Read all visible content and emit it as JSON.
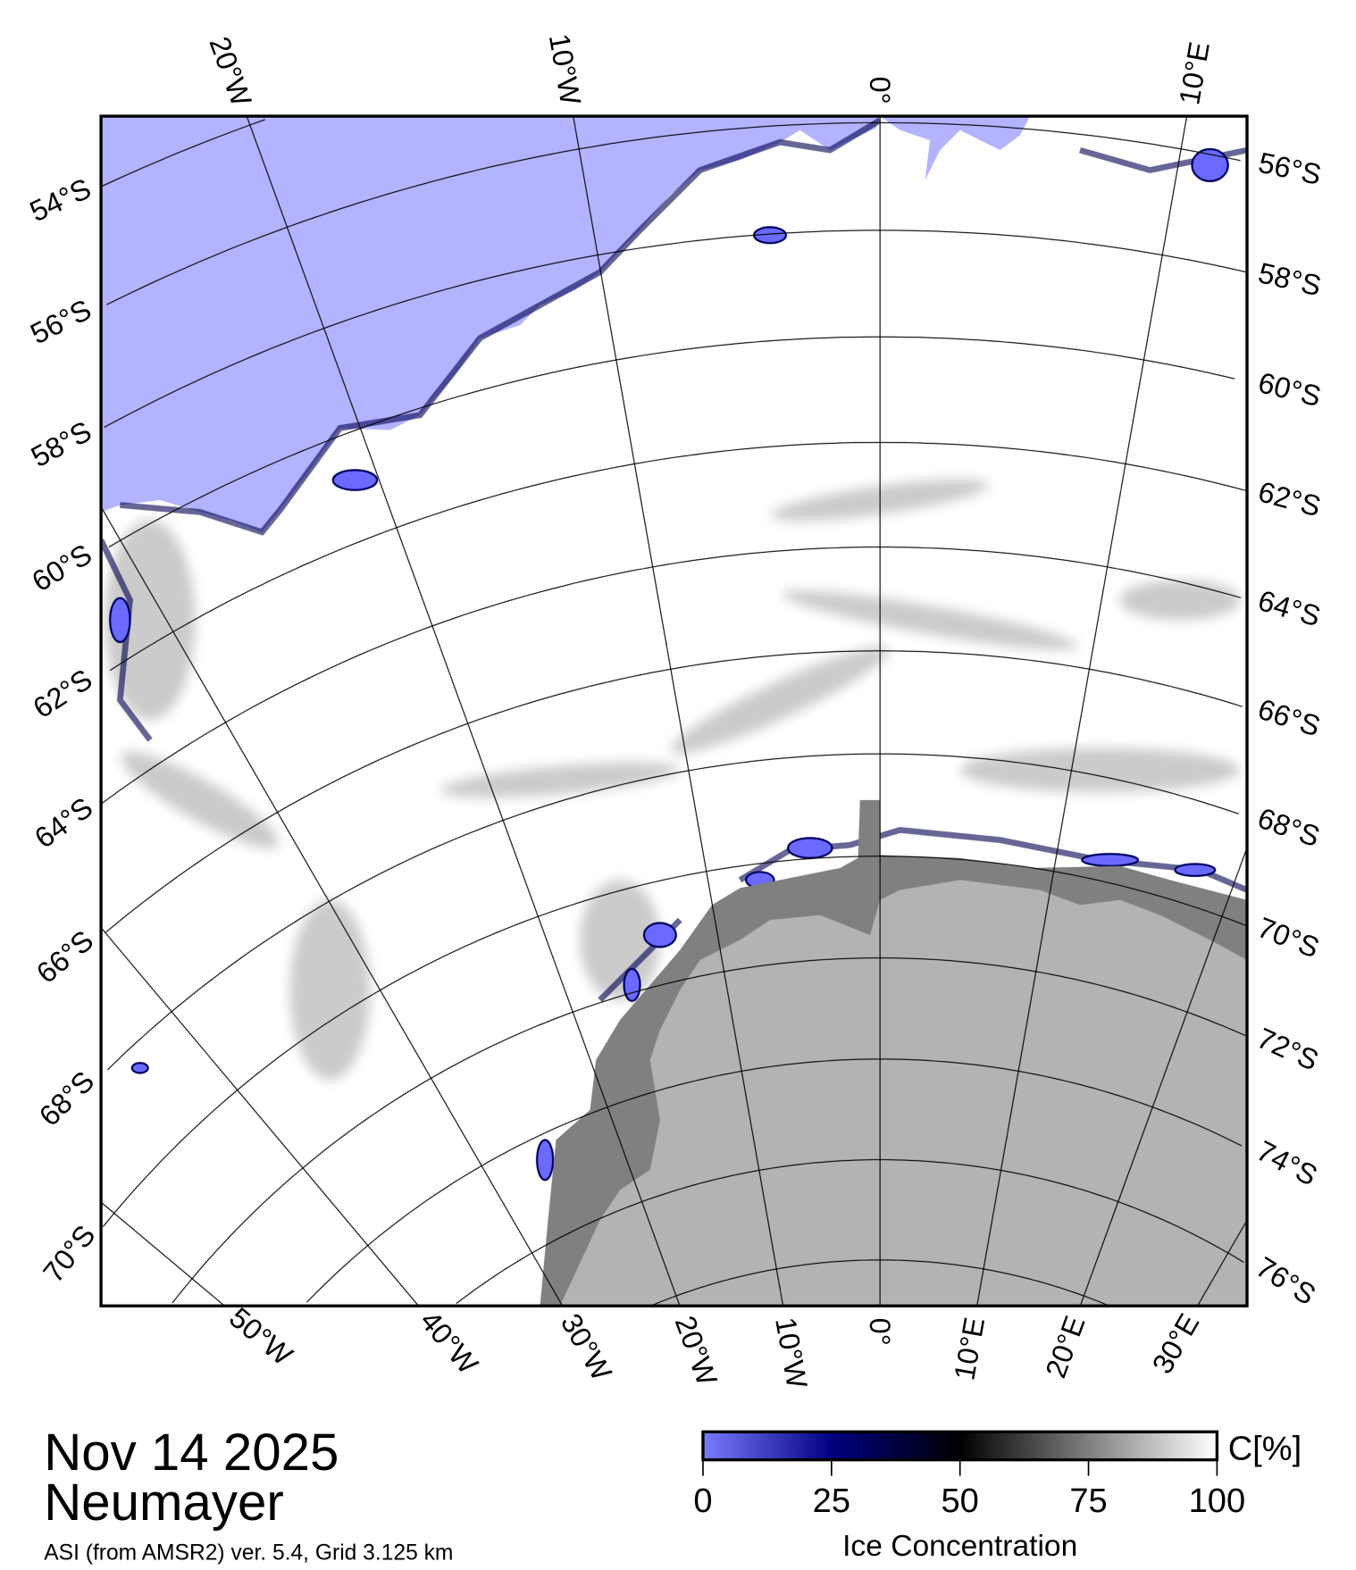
{
  "title": {
    "date": "Nov 14 2025",
    "station": "Neumayer",
    "source": "ASI (from AMSR2) ver. 5.4,  Grid 3.125 km"
  },
  "colorbar": {
    "unit": "C[%]",
    "label": "Ice Concentration",
    "ticks": [
      "0",
      "25",
      "50",
      "75",
      "100"
    ],
    "range": [
      0,
      100
    ],
    "colors": {
      "c0": "#7b7bff",
      "c25": "#000080",
      "c50": "#000000",
      "c100": "#ffffff"
    }
  },
  "map": {
    "colors": {
      "water": "#b3b3ff",
      "land": "#b3b3b3",
      "shelf": "#808080",
      "ice": "#ffffff"
    },
    "graticule": {
      "lat_min": -78,
      "lat_max": -52,
      "lat_step": 2,
      "lon_step": 10
    },
    "top_labels": [
      {
        "text": "20°W",
        "lon": -20
      },
      {
        "text": "10°W",
        "lon": -10
      },
      {
        "text": "0°",
        "lon": 0
      },
      {
        "text": "10°E",
        "lon": 10
      }
    ],
    "right_labels": [
      {
        "text": "56°S",
        "lat": -56
      },
      {
        "text": "58°S",
        "lat": -58
      },
      {
        "text": "60°S",
        "lat": -60
      },
      {
        "text": "62°S",
        "lat": -62
      },
      {
        "text": "64°S",
        "lat": -64
      },
      {
        "text": "66°S",
        "lat": -66
      },
      {
        "text": "68°S",
        "lat": -68
      },
      {
        "text": "70°S",
        "lat": -70
      },
      {
        "text": "72°S",
        "lat": -72
      },
      {
        "text": "74°S",
        "lat": -74
      },
      {
        "text": "76°S",
        "lat": -76
      }
    ],
    "left_labels": [
      {
        "text": "54°S",
        "lat": -54
      },
      {
        "text": "56°S",
        "lat": -56
      },
      {
        "text": "58°S",
        "lat": -58
      },
      {
        "text": "60°S",
        "lat": -60
      },
      {
        "text": "62°S",
        "lat": -62
      },
      {
        "text": "64°S",
        "lat": -64
      },
      {
        "text": "66°S",
        "lat": -66
      },
      {
        "text": "68°S",
        "lat": -68
      },
      {
        "text": "70°S",
        "lat": -70
      }
    ],
    "bottom_labels": [
      {
        "text": "50°W",
        "lon": -50
      },
      {
        "text": "40°W",
        "lon": -40
      },
      {
        "text": "30°W",
        "lon": -30
      },
      {
        "text": "20°W",
        "lon": -20
      },
      {
        "text": "10°W",
        "lon": -10
      },
      {
        "text": "0°",
        "lon": 0
      },
      {
        "text": "10°E",
        "lon": 10
      },
      {
        "text": "20°E",
        "lon": 20
      },
      {
        "text": "30°E",
        "lon": 30
      }
    ]
  }
}
